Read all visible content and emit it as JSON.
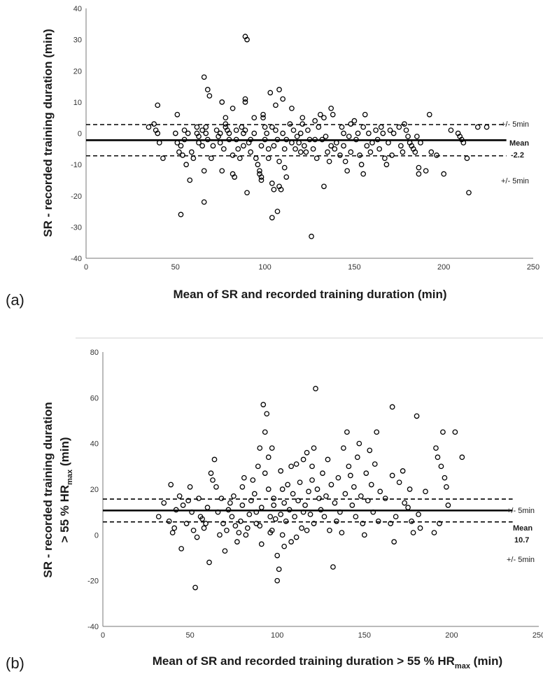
{
  "chart_data": [
    {
      "panel": "(a)",
      "type": "scatter",
      "xlabel": "Mean of SR and recorded training duration (min)",
      "ylabel": "SR - recorded training duration (min)",
      "xlim": [
        0,
        250
      ],
      "ylim": [
        -40,
        40
      ],
      "xticks": [
        "0",
        "50",
        "100",
        "150",
        "200",
        "250"
      ],
      "yticks": [
        "40",
        "30",
        "20",
        "10",
        "0",
        "-10",
        "-20",
        "-30",
        "-40"
      ],
      "mean": -2.2,
      "upper": 2.8,
      "lower": -7.2,
      "line_range": [
        0,
        235
      ],
      "mean_label": "Mean",
      "mean_value": "-2.2",
      "upper_label": "+/- 5min",
      "lower_label": "+/- 5min",
      "points": [
        [
          35,
          2
        ],
        [
          38,
          3
        ],
        [
          39,
          1
        ],
        [
          40,
          9
        ],
        [
          40,
          0
        ],
        [
          41,
          -3
        ],
        [
          43,
          -8
        ],
        [
          50,
          0
        ],
        [
          51,
          6
        ],
        [
          51,
          -3
        ],
        [
          52,
          -6
        ],
        [
          53,
          -26
        ],
        [
          53,
          -4
        ],
        [
          54,
          -7
        ],
        [
          55,
          1
        ],
        [
          55,
          -2
        ],
        [
          56,
          -10
        ],
        [
          57,
          0
        ],
        [
          58,
          -15
        ],
        [
          59,
          -6
        ],
        [
          60,
          -8
        ],
        [
          62,
          2
        ],
        [
          62,
          0
        ],
        [
          63,
          -1
        ],
        [
          63,
          -3
        ],
        [
          65,
          1
        ],
        [
          65,
          -4
        ],
        [
          66,
          18
        ],
        [
          66,
          -12
        ],
        [
          66,
          -22
        ],
        [
          67,
          2
        ],
        [
          67,
          0
        ],
        [
          68,
          -2
        ],
        [
          68,
          14
        ],
        [
          69,
          12
        ],
        [
          70,
          -8
        ],
        [
          71,
          -4
        ],
        [
          73,
          1
        ],
        [
          74,
          -1
        ],
        [
          75,
          0
        ],
        [
          75,
          -3
        ],
        [
          76,
          10
        ],
        [
          76,
          -12
        ],
        [
          77,
          -5
        ],
        [
          78,
          3
        ],
        [
          78,
          5
        ],
        [
          78,
          2
        ],
        [
          79,
          1
        ],
        [
          80,
          0
        ],
        [
          80,
          -2
        ],
        [
          82,
          8
        ],
        [
          82,
          -7
        ],
        [
          82,
          -13
        ],
        [
          83,
          -14
        ],
        [
          84,
          1
        ],
        [
          84,
          -2
        ],
        [
          85,
          -5
        ],
        [
          86,
          -8
        ],
        [
          87,
          2
        ],
        [
          88,
          0
        ],
        [
          88,
          -4
        ],
        [
          89,
          1
        ],
        [
          89,
          10
        ],
        [
          89,
          11
        ],
        [
          89,
          31
        ],
        [
          90,
          30
        ],
        [
          90,
          -19
        ],
        [
          91,
          -3
        ],
        [
          92,
          -6
        ],
        [
          92,
          -2
        ],
        [
          94,
          5
        ],
        [
          94,
          0
        ],
        [
          95,
          -8
        ],
        [
          96,
          -10
        ],
        [
          97,
          -12
        ],
        [
          97,
          -13
        ],
        [
          98,
          -14
        ],
        [
          98,
          -15
        ],
        [
          98,
          -4
        ],
        [
          99,
          6
        ],
        [
          99,
          5
        ],
        [
          100,
          2
        ],
        [
          100,
          -2
        ],
        [
          101,
          0
        ],
        [
          102,
          -5
        ],
        [
          102,
          -8
        ],
        [
          103,
          13
        ],
        [
          104,
          2
        ],
        [
          104,
          -16
        ],
        [
          104,
          -27
        ],
        [
          105,
          -18
        ],
        [
          105,
          -4
        ],
        [
          106,
          1
        ],
        [
          106,
          9
        ],
        [
          107,
          -2
        ],
        [
          107,
          -25
        ],
        [
          108,
          14
        ],
        [
          108,
          -9
        ],
        [
          108,
          -17
        ],
        [
          109,
          -18
        ],
        [
          110,
          11
        ],
        [
          110,
          0
        ],
        [
          111,
          -11
        ],
        [
          111,
          -5
        ],
        [
          112,
          -14
        ],
        [
          112,
          -2
        ],
        [
          114,
          3
        ],
        [
          115,
          8
        ],
        [
          115,
          -3
        ],
        [
          116,
          1
        ],
        [
          117,
          -5
        ],
        [
          118,
          -1
        ],
        [
          119,
          -3
        ],
        [
          120,
          0
        ],
        [
          120,
          -6
        ],
        [
          121,
          3
        ],
        [
          121,
          5
        ],
        [
          122,
          -4
        ],
        [
          123,
          -6
        ],
        [
          124,
          1
        ],
        [
          125,
          -2
        ],
        [
          126,
          -33
        ],
        [
          127,
          -5
        ],
        [
          128,
          4
        ],
        [
          128,
          -2
        ],
        [
          129,
          -8
        ],
        [
          130,
          2
        ],
        [
          131,
          6
        ],
        [
          132,
          -2
        ],
        [
          133,
          5
        ],
        [
          133,
          -17
        ],
        [
          134,
          -1
        ],
        [
          135,
          -6
        ],
        [
          136,
          -9
        ],
        [
          137,
          8
        ],
        [
          137,
          -4
        ],
        [
          138,
          6
        ],
        [
          139,
          -5
        ],
        [
          140,
          -3
        ],
        [
          142,
          -7
        ],
        [
          143,
          2
        ],
        [
          144,
          0
        ],
        [
          144,
          -4
        ],
        [
          145,
          -9
        ],
        [
          146,
          -12
        ],
        [
          147,
          -1
        ],
        [
          148,
          3
        ],
        [
          148,
          -6
        ],
        [
          150,
          4
        ],
        [
          151,
          -2
        ],
        [
          152,
          0
        ],
        [
          153,
          -7
        ],
        [
          154,
          -10
        ],
        [
          155,
          -13
        ],
        [
          155,
          2
        ],
        [
          156,
          6
        ],
        [
          157,
          -4
        ],
        [
          158,
          0
        ],
        [
          159,
          -6
        ],
        [
          160,
          -3
        ],
        [
          162,
          1
        ],
        [
          163,
          -2
        ],
        [
          164,
          -5
        ],
        [
          165,
          2
        ],
        [
          166,
          0
        ],
        [
          167,
          -8
        ],
        [
          168,
          -10
        ],
        [
          169,
          -3
        ],
        [
          170,
          1
        ],
        [
          171,
          -7
        ],
        [
          172,
          0
        ],
        [
          175,
          2
        ],
        [
          176,
          -4
        ],
        [
          177,
          -6
        ],
        [
          178,
          3
        ],
        [
          179,
          1
        ],
        [
          180,
          -1
        ],
        [
          181,
          -3
        ],
        [
          182,
          -4
        ],
        [
          183,
          -5
        ],
        [
          184,
          -6
        ],
        [
          185,
          -1
        ],
        [
          186,
          -11
        ],
        [
          186,
          -13
        ],
        [
          187,
          -3
        ],
        [
          190,
          -12
        ],
        [
          192,
          6
        ],
        [
          193,
          -6
        ],
        [
          196,
          -7
        ],
        [
          200,
          -13
        ],
        [
          204,
          1
        ],
        [
          208,
          0
        ],
        [
          209,
          -1
        ],
        [
          210,
          -2
        ],
        [
          211,
          -3
        ],
        [
          213,
          -8
        ],
        [
          214,
          -19
        ],
        [
          219,
          2
        ],
        [
          224,
          2
        ]
      ]
    },
    {
      "panel": "(b)",
      "type": "scatter",
      "xlabel": "Mean of SR and recorded training duration > 55 % HR",
      "xlabel_sub": "max",
      "xlabel_tail": " (min)",
      "ylabel_line1": "SR - recorded training duration",
      "ylabel_line2": "> 55 % HR",
      "ylabel_sub": "max",
      "ylabel_tail": " (min)",
      "xlim": [
        0,
        250
      ],
      "ylim": [
        -40,
        80
      ],
      "xticks": [
        "0",
        "50",
        "100",
        "150",
        "200",
        "250"
      ],
      "yticks": [
        "80",
        "60",
        "40",
        "20",
        "0",
        "-20",
        "-40"
      ],
      "mean": 10.7,
      "upper": 15.7,
      "lower": 5.7,
      "line_range": [
        0,
        235
      ],
      "mean_label": "Mean",
      "mean_value": "10.7",
      "upper_label": "+/- 5min",
      "lower_label": "+/- 5min",
      "points": [
        [
          32,
          8
        ],
        [
          35,
          14
        ],
        [
          38,
          6
        ],
        [
          39,
          22
        ],
        [
          40,
          1
        ],
        [
          41,
          3
        ],
        [
          42,
          11
        ],
        [
          44,
          17
        ],
        [
          45,
          -6
        ],
        [
          46,
          13
        ],
        [
          48,
          5
        ],
        [
          49,
          15
        ],
        [
          50,
          21
        ],
        [
          51,
          10
        ],
        [
          52,
          2
        ],
        [
          53,
          -23
        ],
        [
          54,
          -1
        ],
        [
          55,
          16
        ],
        [
          56,
          8
        ],
        [
          57,
          7
        ],
        [
          58,
          3
        ],
        [
          59,
          5
        ],
        [
          60,
          12
        ],
        [
          61,
          -12
        ],
        [
          62,
          27
        ],
        [
          63,
          24
        ],
        [
          64,
          33
        ],
        [
          65,
          21
        ],
        [
          66,
          10
        ],
        [
          67,
          0
        ],
        [
          68,
          16
        ],
        [
          69,
          5
        ],
        [
          70,
          -7
        ],
        [
          71,
          2
        ],
        [
          72,
          11
        ],
        [
          73,
          14
        ],
        [
          74,
          8
        ],
        [
          75,
          17
        ],
        [
          76,
          4
        ],
        [
          77,
          -3
        ],
        [
          78,
          1
        ],
        [
          79,
          6
        ],
        [
          80,
          13
        ],
        [
          80,
          21
        ],
        [
          81,
          25
        ],
        [
          82,
          0
        ],
        [
          83,
          3
        ],
        [
          84,
          9
        ],
        [
          85,
          15
        ],
        [
          86,
          24
        ],
        [
          87,
          18
        ],
        [
          88,
          5
        ],
        [
          88,
          10
        ],
        [
          89,
          30
        ],
        [
          90,
          4
        ],
        [
          90,
          38
        ],
        [
          91,
          12
        ],
        [
          91,
          -4
        ],
        [
          92,
          57
        ],
        [
          93,
          27
        ],
        [
          93,
          45
        ],
        [
          94,
          53
        ],
        [
          95,
          20
        ],
        [
          95,
          34
        ],
        [
          96,
          8
        ],
        [
          96,
          1
        ],
        [
          97,
          38
        ],
        [
          97,
          2
        ],
        [
          98,
          13
        ],
        [
          98,
          16
        ],
        [
          99,
          7
        ],
        [
          100,
          -20
        ],
        [
          100,
          -9
        ],
        [
          101,
          -15
        ],
        [
          102,
          28
        ],
        [
          102,
          9
        ],
        [
          103,
          0
        ],
        [
          103,
          20
        ],
        [
          104,
          -5
        ],
        [
          104,
          14
        ],
        [
          105,
          6
        ],
        [
          106,
          22
        ],
        [
          107,
          11
        ],
        [
          108,
          30
        ],
        [
          108,
          -3
        ],
        [
          109,
          18
        ],
        [
          110,
          8
        ],
        [
          111,
          31
        ],
        [
          111,
          -1
        ],
        [
          112,
          15
        ],
        [
          113,
          23
        ],
        [
          114,
          3
        ],
        [
          115,
          10
        ],
        [
          115,
          33
        ],
        [
          116,
          13
        ],
        [
          117,
          36
        ],
        [
          117,
          2
        ],
        [
          118,
          19
        ],
        [
          119,
          9
        ],
        [
          120,
          30
        ],
        [
          120,
          24
        ],
        [
          121,
          38
        ],
        [
          121,
          5
        ],
        [
          122,
          64
        ],
        [
          123,
          20
        ],
        [
          124,
          16
        ],
        [
          125,
          11
        ],
        [
          126,
          27
        ],
        [
          127,
          8
        ],
        [
          128,
          17
        ],
        [
          129,
          33
        ],
        [
          130,
          2
        ],
        [
          131,
          22
        ],
        [
          132,
          -14
        ],
        [
          133,
          14
        ],
        [
          134,
          6
        ],
        [
          135,
          25
        ],
        [
          136,
          10
        ],
        [
          137,
          1
        ],
        [
          138,
          38
        ],
        [
          139,
          18
        ],
        [
          140,
          45
        ],
        [
          141,
          30
        ],
        [
          142,
          26
        ],
        [
          143,
          13
        ],
        [
          144,
          21
        ],
        [
          145,
          8
        ],
        [
          146,
          34
        ],
        [
          147,
          40
        ],
        [
          148,
          17
        ],
        [
          149,
          5
        ],
        [
          150,
          0
        ],
        [
          151,
          27
        ],
        [
          152,
          15
        ],
        [
          153,
          37
        ],
        [
          154,
          22
        ],
        [
          155,
          10
        ],
        [
          156,
          31
        ],
        [
          157,
          45
        ],
        [
          158,
          6
        ],
        [
          159,
          19
        ],
        [
          162,
          16
        ],
        [
          165,
          5
        ],
        [
          166,
          26
        ],
        [
          166,
          56
        ],
        [
          167,
          -3
        ],
        [
          168,
          8
        ],
        [
          170,
          23
        ],
        [
          172,
          28
        ],
        [
          173,
          14
        ],
        [
          175,
          12
        ],
        [
          176,
          20
        ],
        [
          177,
          6
        ],
        [
          178,
          1
        ],
        [
          180,
          52
        ],
        [
          181,
          9
        ],
        [
          182,
          3
        ],
        [
          185,
          19
        ],
        [
          190,
          1
        ],
        [
          191,
          38
        ],
        [
          192,
          34
        ],
        [
          193,
          5
        ],
        [
          194,
          30
        ],
        [
          195,
          45
        ],
        [
          196,
          25
        ],
        [
          197,
          21
        ],
        [
          198,
          13
        ],
        [
          202,
          45
        ],
        [
          206,
          34
        ]
      ]
    }
  ]
}
